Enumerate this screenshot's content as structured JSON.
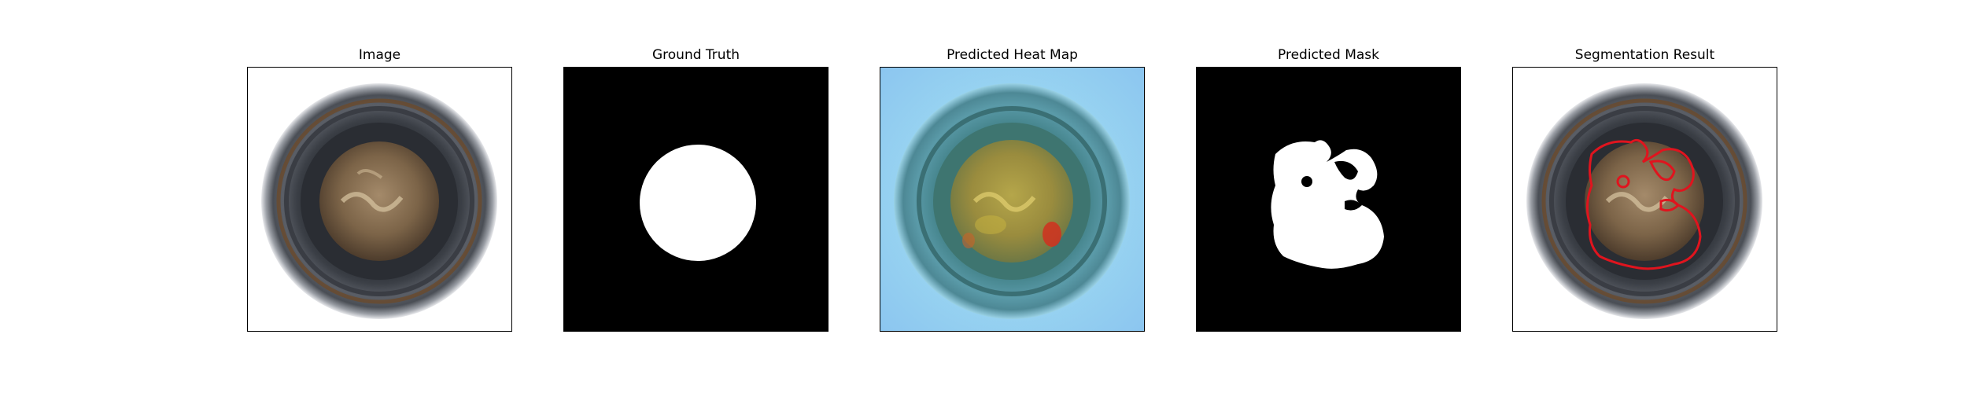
{
  "panels": [
    {
      "id": "image",
      "title": "Image"
    },
    {
      "id": "ground-truth",
      "title": "Ground Truth"
    },
    {
      "id": "heatmap",
      "title": "Predicted Heat Map"
    },
    {
      "id": "mask",
      "title": "Predicted Mask"
    },
    {
      "id": "segmentation",
      "title": "Segmentation Result"
    }
  ],
  "colors": {
    "background": "#ffffff",
    "mask_white": "#ffffff",
    "mask_black": "#000000",
    "contour_red": "#e0141e",
    "heat_blue": "#8fd0f2",
    "heat_yellow": "#c9b640",
    "heat_red": "#d1301e"
  }
}
